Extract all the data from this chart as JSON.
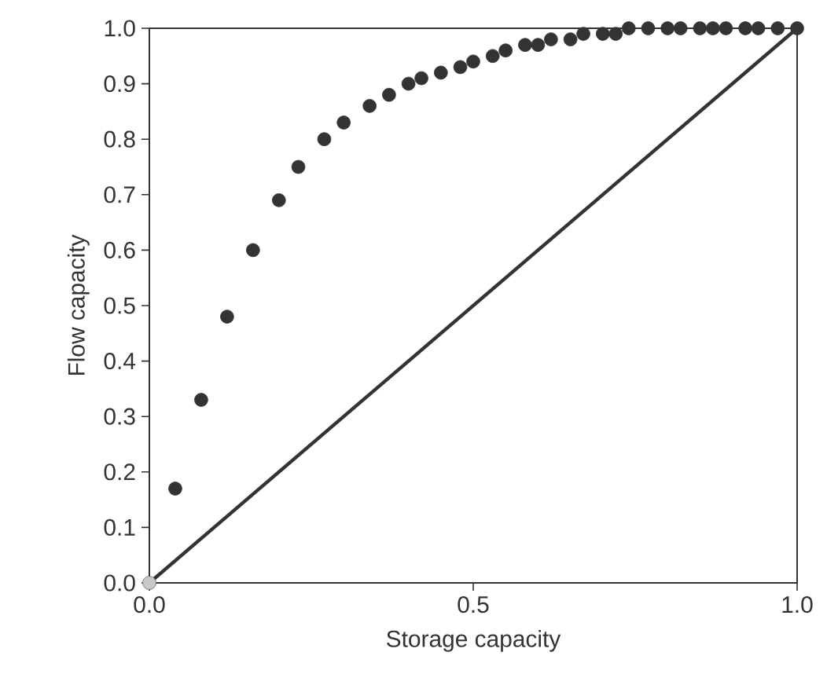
{
  "chart_data": {
    "type": "scatter",
    "xlabel": "Storage capacity",
    "ylabel": "Flow capacity",
    "xlim": [
      0,
      1
    ],
    "ylim": [
      0,
      1
    ],
    "xticks": [
      {
        "value": 0,
        "label": "0.0"
      },
      0.5,
      {
        "value": 1,
        "label": "1.0"
      }
    ],
    "yticks": [
      {
        "value": 0,
        "label": "0.0"
      },
      0.1,
      0.2,
      0.3,
      0.4,
      0.5,
      0.6,
      0.7,
      0.8,
      0.9,
      {
        "value": 1,
        "label": "1.0"
      }
    ],
    "series": [
      {
        "type": "line",
        "color": "#333333",
        "x": [
          0,
          1
        ],
        "values": [
          0,
          1
        ]
      },
      {
        "color": "#c8c8c8",
        "marker": "circle",
        "x": [
          0
        ],
        "values": [
          0
        ]
      },
      {
        "color": "#333333",
        "marker": "circle",
        "x": [
          0.04,
          0.08,
          0.12,
          0.16,
          0.2,
          0.23,
          0.27,
          0.3,
          0.34,
          0.37,
          0.4,
          0.42,
          0.45,
          0.48,
          0.5,
          0.53,
          0.55,
          0.58,
          0.6,
          0.62,
          0.65,
          0.67,
          0.7,
          0.72,
          0.74,
          0.77,
          0.8,
          0.82,
          0.85,
          0.87,
          0.89,
          0.92,
          0.94,
          0.97,
          1.0
        ],
        "values": [
          0.17,
          0.33,
          0.48,
          0.6,
          0.69,
          0.75,
          0.8,
          0.83,
          0.86,
          0.88,
          0.9,
          0.91,
          0.92,
          0.93,
          0.94,
          0.95,
          0.96,
          0.97,
          0.97,
          0.98,
          0.98,
          0.99,
          0.99,
          0.99,
          1.0,
          1.0,
          1.0,
          1.0,
          1.0,
          1.0,
          1.0,
          1.0,
          1.0,
          1.0,
          1.0
        ]
      }
    ]
  }
}
